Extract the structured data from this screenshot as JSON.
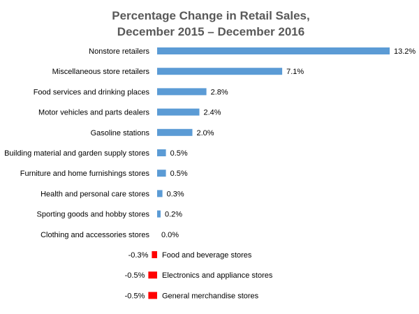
{
  "chart_data": {
    "type": "bar",
    "orientation": "horizontal",
    "title": [
      "Percentage Change in Retail Sales,",
      "December 2015 – December 2016"
    ],
    "categories": [
      "Nonstore retailers",
      "Miscellaneous store retailers",
      "Food services and drinking places",
      "Motor vehicles and parts dealers",
      "Gasoline stations",
      "Building material and garden supply stores",
      "Furniture and home furnishings stores",
      "Health and personal care stores",
      "Sporting goods and hobby stores",
      "Clothing and accessories stores",
      "Food and beverage stores",
      "Electronics and appliance stores",
      "General merchandise stores"
    ],
    "values": [
      13.2,
      7.1,
      2.8,
      2.4,
      2.0,
      0.5,
      0.5,
      0.3,
      0.2,
      0.0,
      -0.3,
      -0.5,
      -0.5
    ],
    "value_labels": [
      "13.2%",
      "7.1%",
      "2.8%",
      "2.4%",
      "2.0%",
      "0.5%",
      "0.5%",
      "0.3%",
      "0.2%",
      "0.0%",
      "-0.3%",
      "-0.5%",
      "-0.5%"
    ],
    "xlabel": "",
    "ylabel": "",
    "xlim": [
      -0.5,
      13.2
    ],
    "grid": false,
    "legend": "none",
    "colors": {
      "positive": "#5b9bd5",
      "negative": "#ff0000"
    }
  }
}
